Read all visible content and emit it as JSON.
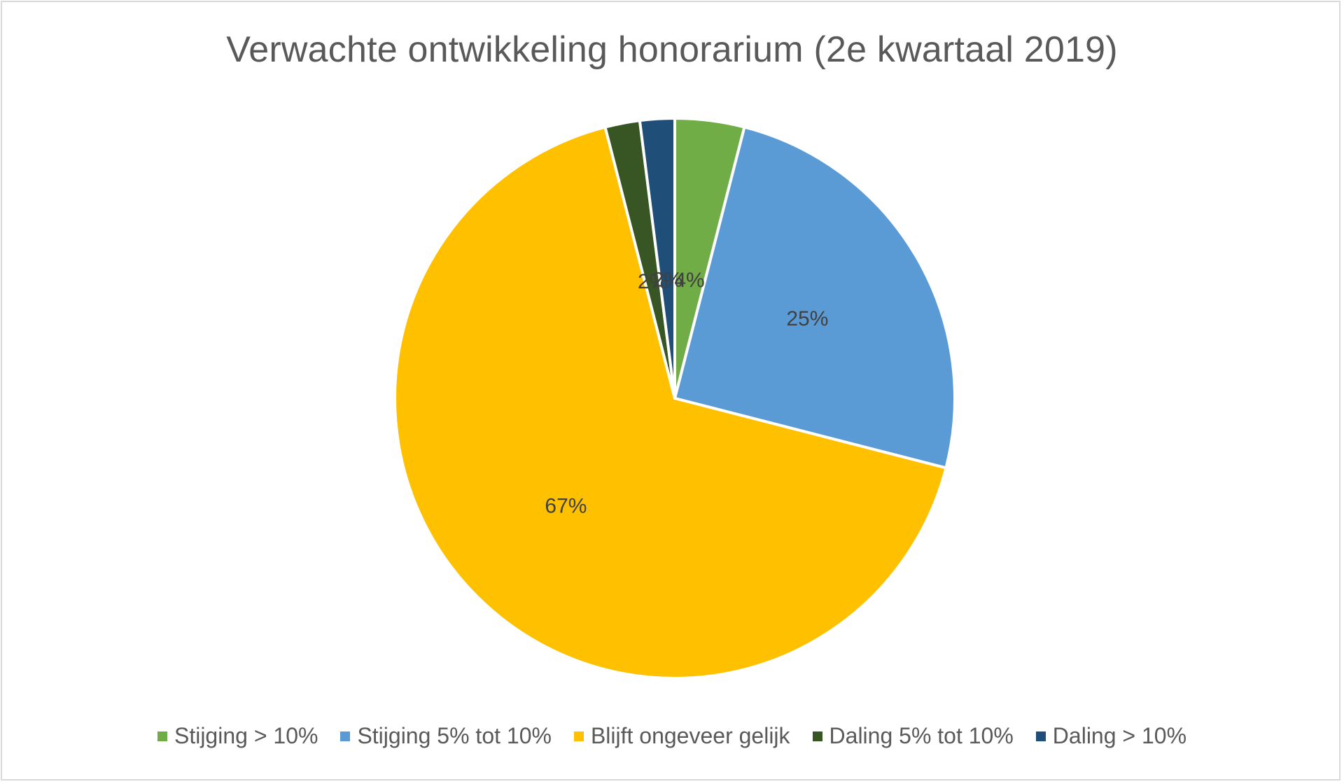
{
  "chart_data": {
    "type": "pie",
    "title": "Verwachte ontwikkeling honorarium (2e kwartaal 2019)",
    "categories": [
      "Stijging > 10%",
      "Stijging 5% tot 10%",
      "Blijft ongeveer gelijk",
      "Daling 5% tot 10%",
      "Daling > 10%"
    ],
    "values": [
      4,
      25,
      67,
      2,
      2
    ],
    "data_labels": [
      "4%",
      "25%",
      "67%",
      "2%",
      "2%"
    ],
    "colors": [
      "#70ad47",
      "#5b9bd5",
      "#ffc000",
      "#375623",
      "#1f4e79"
    ],
    "start_angle": "12 o'clock",
    "direction": "clockwise",
    "legend": "bottom"
  }
}
